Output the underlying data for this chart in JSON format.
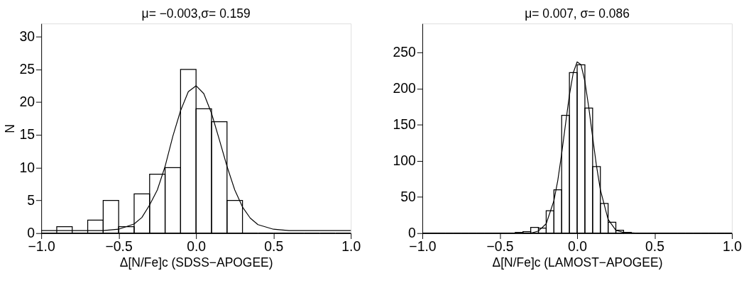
{
  "chart_data": [
    {
      "type": "histogram",
      "title": "μ= −0.003,σ= 0.159",
      "xlabel": "Δ[N/Fe]c (SDSS−APOGEE)",
      "ylabel": "N",
      "bins": [
        -1.0,
        -0.9,
        -0.8,
        -0.7,
        -0.6,
        -0.5,
        -0.4,
        -0.3,
        -0.2,
        -0.1,
        0.0,
        0.1,
        0.2,
        0.3,
        0.4,
        0.5,
        0.6,
        0.7,
        0.8,
        0.9,
        1.0
      ],
      "values": [
        0,
        1,
        0,
        2,
        5,
        1,
        6,
        9,
        10,
        25,
        19,
        17,
        5,
        0,
        0,
        0,
        0,
        0,
        0,
        0
      ],
      "color": "#000000",
      "series": [
        {
          "type": "line",
          "color": "#000000",
          "x": [
            -1.0,
            -0.8,
            -0.6,
            -0.5,
            -0.4,
            -0.35,
            -0.3,
            -0.25,
            -0.2,
            -0.15,
            -0.1,
            -0.05,
            0.0,
            0.05,
            0.1,
            0.15,
            0.2,
            0.25,
            0.3,
            0.35,
            0.4,
            0.5,
            0.6,
            0.8,
            1.0
          ],
          "values": [
            0.4,
            0.4,
            0.4,
            0.6,
            1.4,
            2.4,
            4.3,
            6.6,
            10.2,
            14.8,
            18.7,
            21.6,
            22.5,
            21.3,
            18.3,
            14.3,
            10.2,
            6.6,
            4.0,
            2.3,
            1.3,
            0.6,
            0.4,
            0.4,
            0.4
          ]
        }
      ],
      "xlim": [
        -1.0,
        1.0
      ],
      "xticks": [
        {
          "value": -1.0,
          "label": "−1.0"
        },
        {
          "value": -0.5,
          "label": "−0.5"
        },
        {
          "value": 0.0,
          "label": "0.0"
        },
        {
          "value": 0.5,
          "label": "0.5"
        },
        {
          "value": 1.0,
          "label": "1.0"
        }
      ],
      "ylim": [
        0,
        32
      ],
      "yticks": [
        0,
        5,
        10,
        15,
        20,
        25,
        30
      ],
      "grid": false
    },
    {
      "type": "histogram",
      "title": "μ= 0.007, σ= 0.086",
      "xlabel": "Δ[N/Fe]c (LAMOST−APOGEE)",
      "bins": [
        -1.0,
        -0.95,
        -0.9,
        -0.85,
        -0.8,
        -0.75,
        -0.7,
        -0.65,
        -0.6,
        -0.55,
        -0.5,
        -0.45,
        -0.4,
        -0.35,
        -0.3,
        -0.25,
        -0.2,
        -0.15,
        -0.1,
        -0.05,
        0.0,
        0.05,
        0.1,
        0.15,
        0.2,
        0.25,
        0.3,
        0.35,
        0.4,
        0.45,
        0.5,
        0.55,
        0.6,
        0.65,
        0.7,
        0.75,
        0.8,
        0.85,
        0.9,
        0.95,
        1.0
      ],
      "values": [
        0,
        0,
        0,
        0,
        0,
        0,
        0,
        0,
        0,
        0,
        0,
        0,
        1,
        2,
        8,
        7,
        31,
        60,
        163,
        222,
        233,
        173,
        92,
        41,
        15,
        4,
        1,
        0,
        0,
        0,
        0,
        0,
        0,
        0,
        0,
        0,
        0,
        0,
        0,
        0
      ],
      "color": "#000000",
      "series": [
        {
          "type": "line",
          "color": "#000000",
          "x": [
            -1.0,
            -0.5,
            -0.4,
            -0.3,
            -0.25,
            -0.2,
            -0.15,
            -0.125,
            -0.1,
            -0.075,
            -0.05,
            -0.025,
            0.0,
            0.025,
            0.05,
            0.075,
            0.1,
            0.125,
            0.15,
            0.2,
            0.25,
            0.3,
            0.4,
            0.5,
            1.0
          ],
          "values": [
            0,
            0,
            0,
            0,
            3,
            13,
            45,
            73,
            110,
            151,
            191,
            222,
            237,
            233,
            210,
            174,
            133,
            93,
            60,
            19,
            4,
            1,
            0,
            0,
            0
          ]
        }
      ],
      "xlim": [
        -1.0,
        1.0
      ],
      "xticks": [
        {
          "value": -1.0,
          "label": "−1.0"
        },
        {
          "value": -0.5,
          "label": "−0.5"
        },
        {
          "value": 0.0,
          "label": "0.0"
        },
        {
          "value": 0.5,
          "label": "0.5"
        },
        {
          "value": 1.0,
          "label": "1.0"
        }
      ],
      "ylim": [
        0,
        290
      ],
      "yticks": [
        0,
        50,
        100,
        150,
        200,
        250
      ],
      "grid": false
    }
  ]
}
